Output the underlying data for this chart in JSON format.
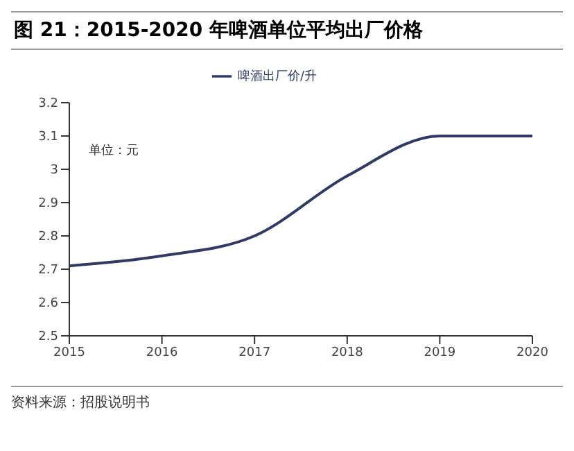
{
  "chart_data": {
    "type": "line",
    "title": "图 21：2015-2020 年啤酒单位平均出厂价格",
    "categories": [
      "2015",
      "2016",
      "2017",
      "2018",
      "2019",
      "2020"
    ],
    "series": [
      {
        "name": "啤酒出厂价/升",
        "color": "#2f3b66",
        "values": [
          2.71,
          2.74,
          2.8,
          2.98,
          3.1,
          3.1
        ]
      }
    ],
    "ylim": [
      2.5,
      3.2
    ],
    "yticks": [
      2.5,
      2.6,
      2.7,
      2.8,
      2.9,
      3,
      3.1,
      3.2
    ],
    "grid": false,
    "legend": "top",
    "marker": "none",
    "line_style": "solid",
    "annotations": [
      "单位：元",
      "资料来源：招股说明书"
    ]
  }
}
